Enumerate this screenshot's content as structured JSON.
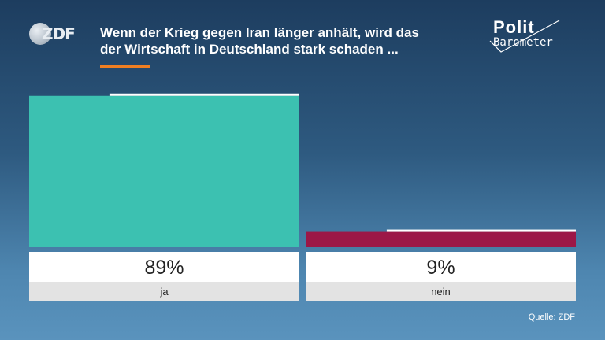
{
  "header": {
    "logo_text": "ZDF",
    "title_line1": "Wenn der Krieg gegen Iran länger anhält, wird das",
    "title_line2": "der Wirtschaft in Deutschland stark schaden ...",
    "brand_line1": "Polit",
    "brand_line2": "Barometer"
  },
  "footer": {
    "source": "Quelle: ZDF"
  },
  "colors": {
    "ja": "#3cc1b1",
    "nein": "#9c1747",
    "label_bg": "#ffffff",
    "category_bg": "#e3e3e3",
    "accent": "#f07f22"
  },
  "chart_data": {
    "type": "bar",
    "categories": [
      "ja",
      "nein"
    ],
    "values": [
      89,
      9
    ],
    "value_labels": [
      "89%",
      "9%"
    ],
    "previous_values": [
      89,
      9
    ],
    "ylim": [
      0,
      100
    ],
    "grid": false
  }
}
